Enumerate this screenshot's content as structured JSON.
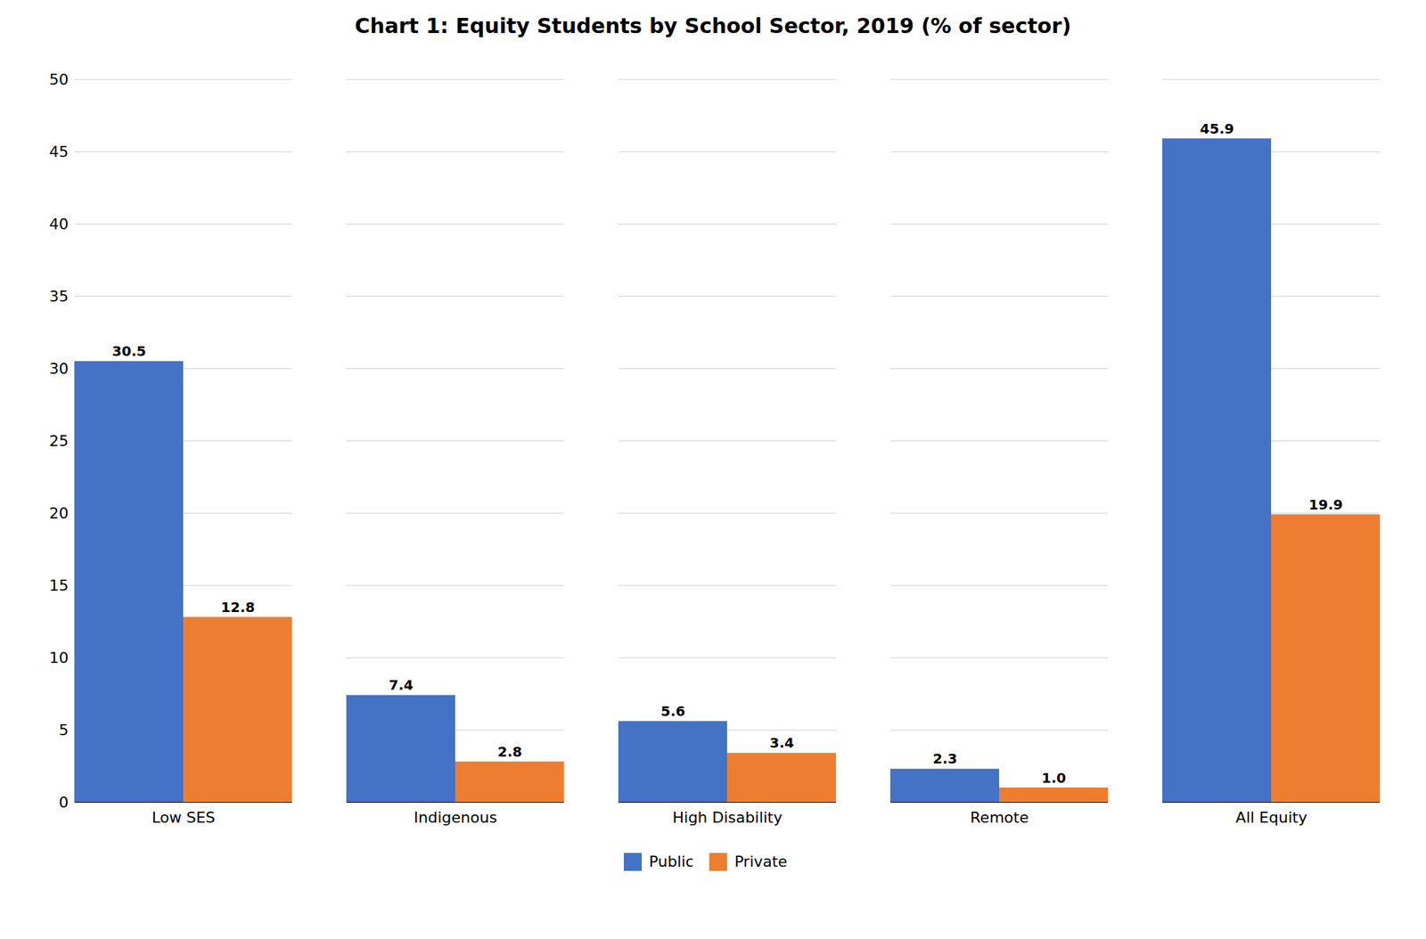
{
  "chart_data": {
    "type": "bar",
    "title": "Chart 1: Equity Students by School Sector, 2019 (% of sector)",
    "categories": [
      "Low SES",
      "Indigenous",
      "High Disability",
      "Remote",
      "All Equity"
    ],
    "series": [
      {
        "name": "Public",
        "color": "#4472C4",
        "values": [
          30.5,
          7.4,
          5.6,
          2.3,
          45.9
        ],
        "value_labels": [
          "30.5",
          "7.4",
          "5.6",
          "2.3",
          "45.9"
        ]
      },
      {
        "name": "Private",
        "color": "#ED7D31",
        "values": [
          12.8,
          2.8,
          3.4,
          1.0,
          19.9
        ],
        "value_labels": [
          "12.8",
          "2.8",
          "3.4",
          "1.0",
          "19.9"
        ]
      }
    ],
    "ylim": [
      0,
      50
    ],
    "yticks": [
      0,
      5,
      10,
      15,
      20,
      25,
      30,
      35,
      40,
      45,
      50
    ],
    "grid": true,
    "legend": "bottom",
    "data_labels": true
  }
}
